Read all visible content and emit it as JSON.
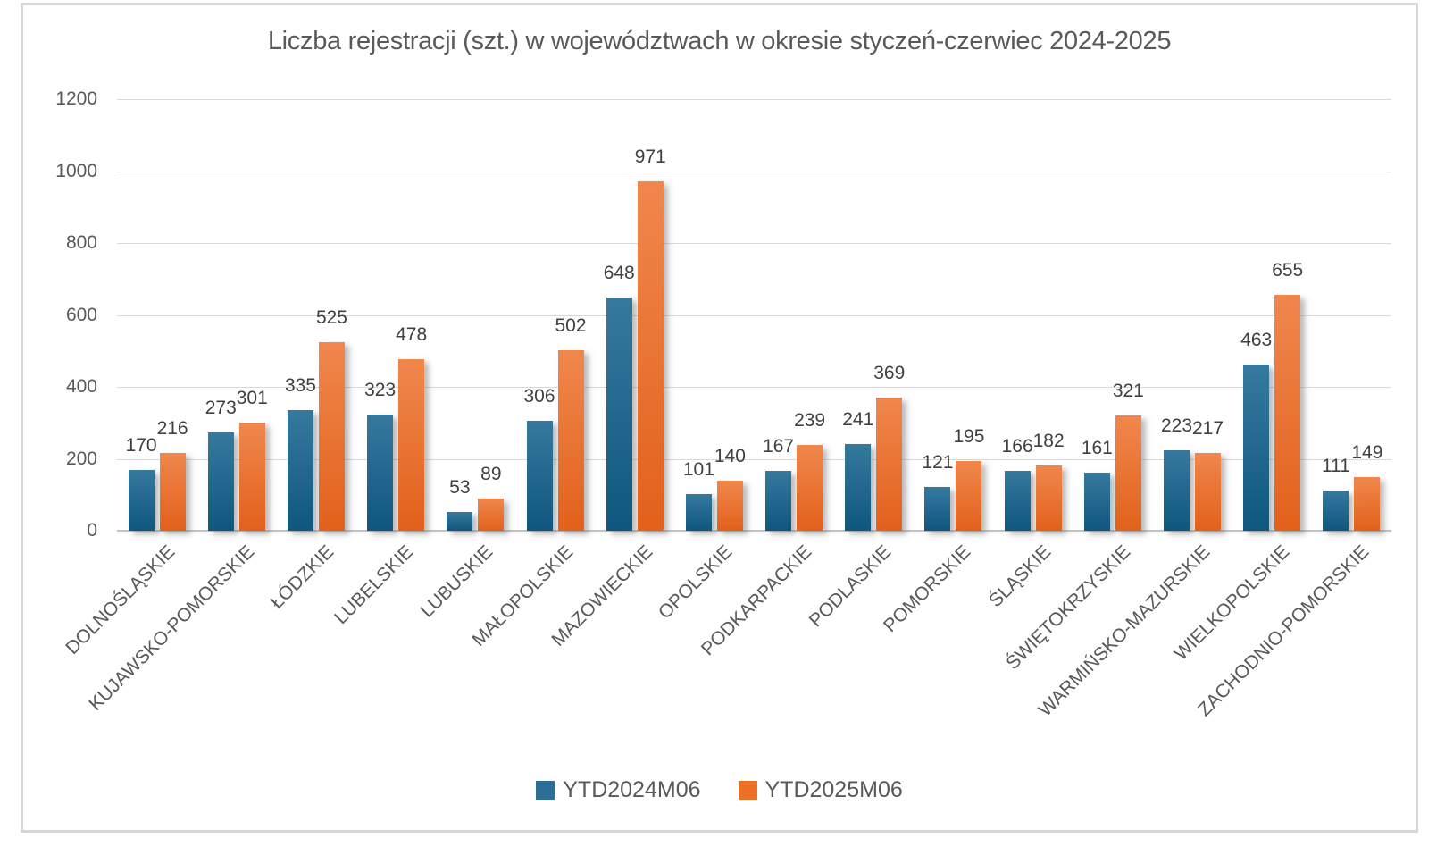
{
  "window": {
    "background": "#ffffff",
    "frame_border_color": "#d7d7d7"
  },
  "chart_data": {
    "type": "bar",
    "title": "Liczba rejestracji (szt.) w województwach w okresie styczeń-czerwiec 2024-2025",
    "categories": [
      "DOLNOŚLĄSKIE",
      "KUJAWSKO-POMORSKIE",
      "ŁÓDZKIE",
      "LUBELSKIE",
      "LUBUSKIE",
      "MAŁOPOLSKIE",
      "MAZOWIECKIE",
      "OPOLSKIE",
      "PODKARPACKIE",
      "PODLASKIE",
      "POMORSKIE",
      "ŚLĄSKIE",
      "ŚWIĘTOKRZYSKIE",
      "WARMIŃSKO-MAZURSKIE",
      "WIELKOPOLSKIE",
      "ZACHODNIO-POMORSKIE"
    ],
    "series": [
      {
        "name": "YTD2024M06",
        "color": "#2D6E96",
        "gradient_top": "#36799F",
        "gradient_bottom": "#0F577E",
        "values": [
          170,
          273,
          335,
          323,
          53,
          306,
          648,
          101,
          167,
          241,
          121,
          166,
          161,
          223,
          463,
          111
        ]
      },
      {
        "name": "YTD2025M06",
        "color": "#ED7125",
        "gradient_top": "#F0874D",
        "gradient_bottom": "#E2611B",
        "values": [
          216,
          301,
          525,
          478,
          89,
          502,
          971,
          140,
          239,
          369,
          195,
          182,
          321,
          217,
          655,
          149
        ]
      }
    ],
    "xlabel": "",
    "ylabel": "",
    "y_axis": {
      "min": 0,
      "max": 1200,
      "step": 200,
      "ticks": [
        0,
        200,
        400,
        600,
        800,
        1000,
        1200
      ]
    },
    "ylim": [
      0,
      1200
    ],
    "grid": true,
    "data_labels": true,
    "legend_position": "bottom",
    "text_color": "#595959",
    "data_label_color": "#404040",
    "grid_color": "#d9d9d9",
    "axis_line_color": "#c3c3c3"
  }
}
